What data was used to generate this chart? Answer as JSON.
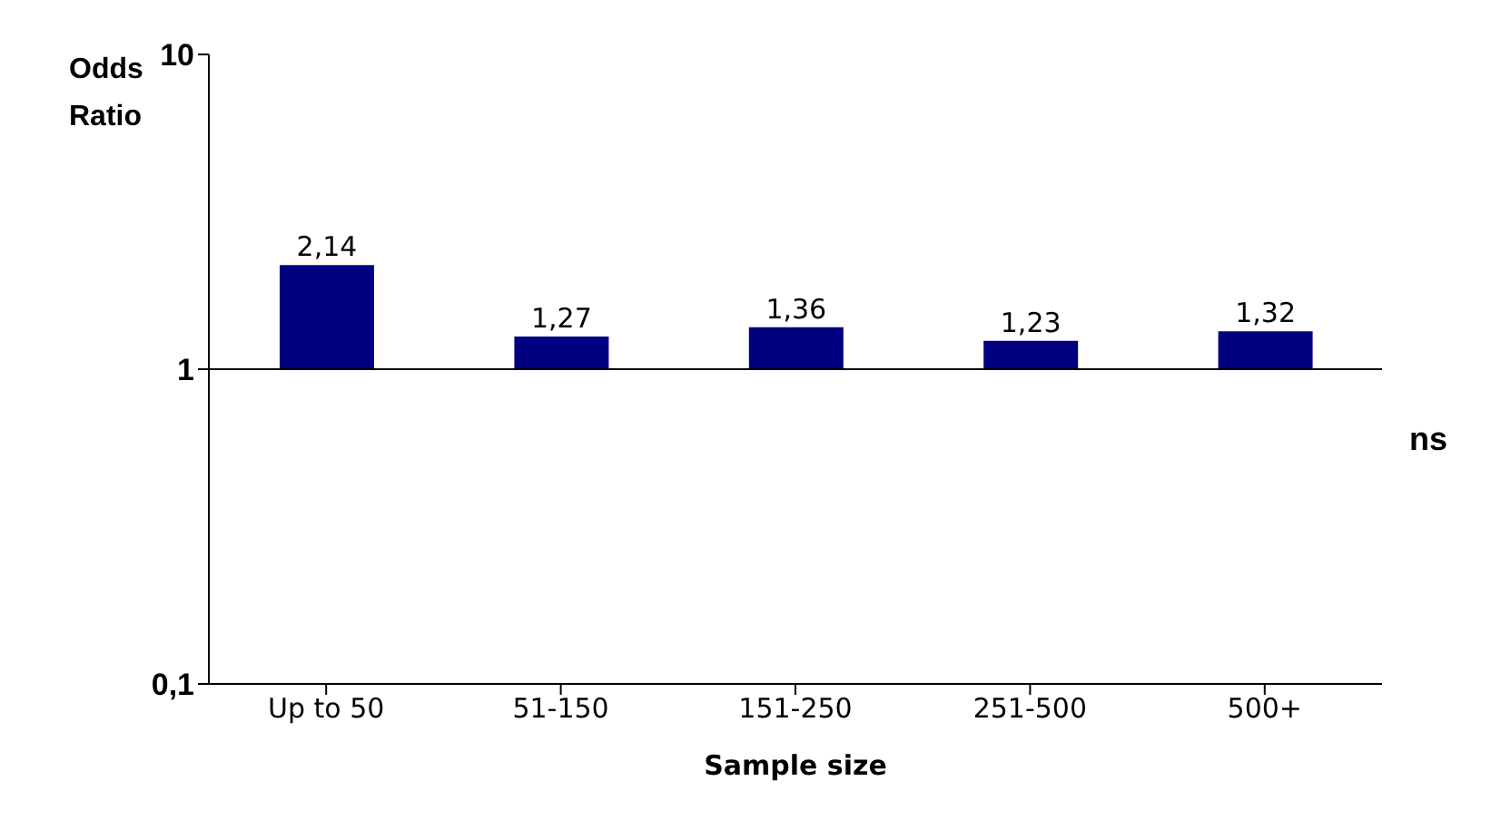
{
  "chart_data": {
    "type": "bar",
    "xlabel": "Sample size",
    "ylabel": "Odds Ratio",
    "categories": [
      "Up to 50",
      "51-150",
      "151-250",
      "251-500",
      "500+"
    ],
    "values": [
      1.14,
      0.27,
      0.36,
      0.23,
      0.32
    ],
    "base": [
      1,
      1,
      1,
      1,
      1
    ],
    "value_labels": [
      "2,14",
      "1,27",
      "1,36",
      "1,23",
      "1,32"
    ],
    "color": "#000080",
    "log": "y",
    "ylim": [
      0.1,
      10
    ],
    "yticks": [
      {
        "value": 0.1,
        "label": "0,1"
      },
      1,
      10
    ],
    "ref_lines": [
      {
        "axis": "y",
        "value": 1,
        "color": "#000000"
      }
    ],
    "annotations": [
      "ns"
    ],
    "grid": false,
    "legend": false
  }
}
